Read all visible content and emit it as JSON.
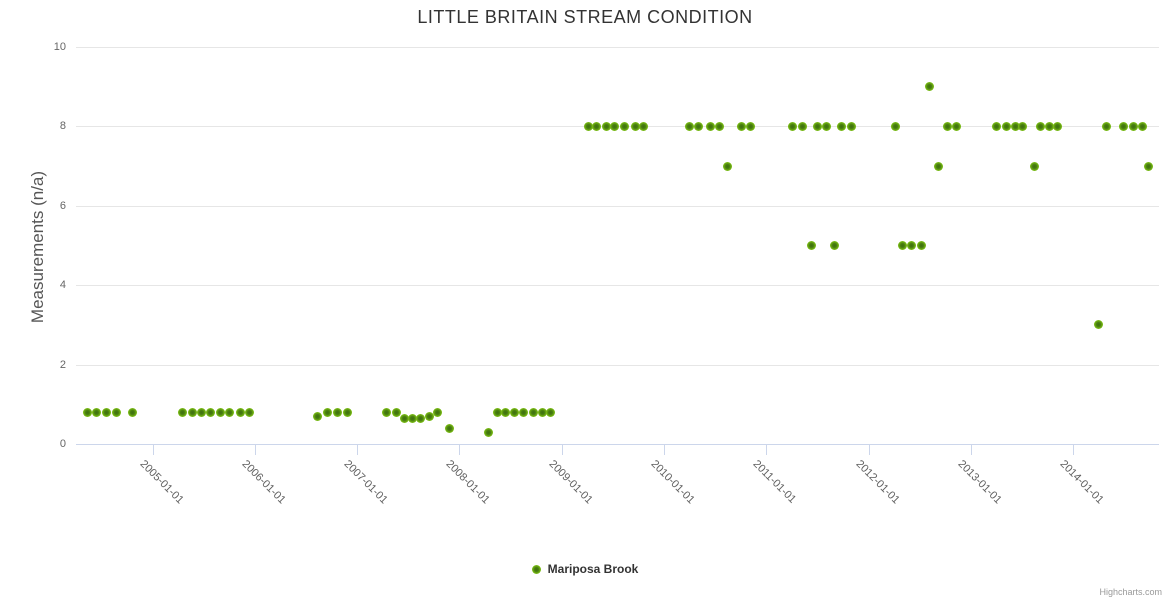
{
  "chart_data": {
    "type": "scatter",
    "title": "LITTLE BRITAIN STREAM CONDITION",
    "ylabel": "Measurements (n/a)",
    "xlabel": "",
    "grid": "horizontal-only",
    "legend_position": "bottom-center",
    "x_axis": {
      "min": 2004.25,
      "max": 2014.84,
      "ticks": [
        {
          "v": 2005,
          "label": "2005-01-01"
        },
        {
          "v": 2006,
          "label": "2006-01-01"
        },
        {
          "v": 2007,
          "label": "2007-01-01"
        },
        {
          "v": 2008,
          "label": "2008-01-01"
        },
        {
          "v": 2009,
          "label": "2009-01-01"
        },
        {
          "v": 2010,
          "label": "2010-01-01"
        },
        {
          "v": 2011,
          "label": "2011-01-01"
        },
        {
          "v": 2012,
          "label": "2012-01-01"
        },
        {
          "v": 2013,
          "label": "2013-01-01"
        },
        {
          "v": 2014,
          "label": "2014-01-01"
        }
      ]
    },
    "y_axis": {
      "min": 0,
      "max": 10,
      "ticks": [
        {
          "v": 0,
          "label": "0"
        },
        {
          "v": 2,
          "label": "2"
        },
        {
          "v": 4,
          "label": "4"
        },
        {
          "v": 6,
          "label": "6"
        },
        {
          "v": 8,
          "label": "8"
        },
        {
          "v": 10,
          "label": "10"
        }
      ]
    },
    "series": [
      {
        "name": "Mariposa Brook",
        "marker_color_outer": "#8ED41F",
        "marker_color_inner": "#3E6F0F",
        "points": [
          [
            2004.36,
            0.8
          ],
          [
            2004.45,
            0.8
          ],
          [
            2004.55,
            0.8
          ],
          [
            2004.65,
            0.8
          ],
          [
            2004.8,
            0.8
          ],
          [
            2005.29,
            0.8
          ],
          [
            2005.39,
            0.8
          ],
          [
            2005.48,
            0.8
          ],
          [
            2005.57,
            0.8
          ],
          [
            2005.66,
            0.8
          ],
          [
            2005.75,
            0.8
          ],
          [
            2005.86,
            0.8
          ],
          [
            2005.95,
            0.8
          ],
          [
            2006.61,
            0.7
          ],
          [
            2006.71,
            0.8
          ],
          [
            2006.81,
            0.8
          ],
          [
            2006.9,
            0.8
          ],
          [
            2007.29,
            0.8
          ],
          [
            2007.38,
            0.8
          ],
          [
            2007.46,
            0.65
          ],
          [
            2007.54,
            0.65
          ],
          [
            2007.62,
            0.65
          ],
          [
            2007.71,
            0.7
          ],
          [
            2007.78,
            0.8
          ],
          [
            2007.9,
            0.4
          ],
          [
            2008.28,
            0.3
          ],
          [
            2008.37,
            0.8
          ],
          [
            2008.45,
            0.8
          ],
          [
            2008.54,
            0.8
          ],
          [
            2008.63,
            0.8
          ],
          [
            2008.72,
            0.8
          ],
          [
            2008.81,
            0.8
          ],
          [
            2008.89,
            0.8
          ],
          [
            2009.26,
            8
          ],
          [
            2009.34,
            8
          ],
          [
            2009.44,
            8
          ],
          [
            2009.52,
            8
          ],
          [
            2009.61,
            8
          ],
          [
            2009.72,
            8
          ],
          [
            2009.8,
            8
          ],
          [
            2010.25,
            8
          ],
          [
            2010.34,
            8
          ],
          [
            2010.45,
            8
          ],
          [
            2010.54,
            8
          ],
          [
            2010.62,
            7
          ],
          [
            2010.76,
            8
          ],
          [
            2010.85,
            8
          ],
          [
            2011.26,
            8
          ],
          [
            2011.35,
            8
          ],
          [
            2011.44,
            5
          ],
          [
            2011.5,
            8
          ],
          [
            2011.59,
            8
          ],
          [
            2011.67,
            5
          ],
          [
            2011.74,
            8
          ],
          [
            2011.83,
            8
          ],
          [
            2012.26,
            8
          ],
          [
            2012.33,
            5
          ],
          [
            2012.42,
            5
          ],
          [
            2012.52,
            5
          ],
          [
            2012.6,
            9
          ],
          [
            2012.68,
            7
          ],
          [
            2012.77,
            8
          ],
          [
            2012.86,
            8
          ],
          [
            2013.25,
            8
          ],
          [
            2013.35,
            8
          ],
          [
            2013.44,
            8
          ],
          [
            2013.51,
            8
          ],
          [
            2013.62,
            7
          ],
          [
            2013.68,
            8
          ],
          [
            2013.77,
            8
          ],
          [
            2013.85,
            8
          ],
          [
            2014.25,
            3
          ],
          [
            2014.33,
            8
          ],
          [
            2014.49,
            8
          ],
          [
            2014.59,
            8
          ],
          [
            2014.68,
            8
          ],
          [
            2014.74,
            7
          ]
        ]
      }
    ]
  },
  "credits": {
    "label": "Highcharts.com"
  },
  "colors": {
    "title": "#333333",
    "axis_label": "#606060",
    "axis_line": "#CCD6EB",
    "gridline": "#E6E6E6",
    "marker_outer": "#8ED41F",
    "marker_inner": "#3E6F0F"
  }
}
